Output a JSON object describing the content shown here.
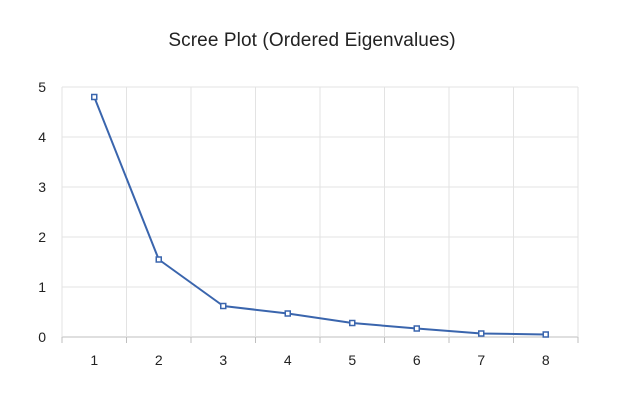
{
  "chart_data": {
    "type": "line",
    "title": "Scree Plot (Ordered Eigenvalues)",
    "xlabel": "",
    "ylabel": "",
    "categories": [
      "1",
      "2",
      "3",
      "4",
      "5",
      "6",
      "7",
      "8"
    ],
    "series": [
      {
        "values": [
          4.8,
          1.55,
          0.62,
          0.47,
          0.28,
          0.17,
          0.07,
          0.05
        ],
        "color": "#3a65ad",
        "marker": "open-square"
      }
    ],
    "ylim": [
      0,
      5
    ],
    "yticks": [
      "0",
      "1",
      "2",
      "3",
      "4",
      "5"
    ],
    "grid": true,
    "legend": "none"
  }
}
